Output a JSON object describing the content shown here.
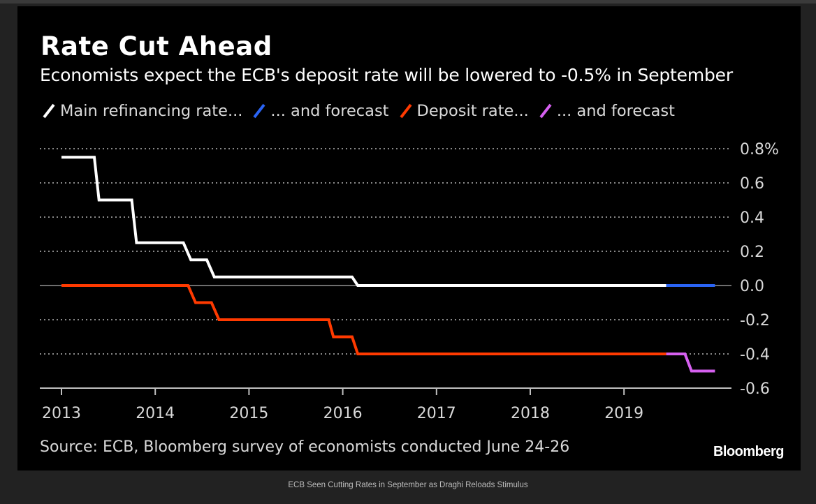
{
  "caption": "ECB Seen Cutting Rates in September as Draghi Reloads Stimulus",
  "brand": "Bloomberg",
  "chart_data": {
    "type": "line",
    "title": "Rate Cut Ahead",
    "subtitle": "Economists expect the ECB's deposit rate will be lowered to -0.5% in September",
    "source": "Source: ECB, Bloomberg survey of economists conducted June 24-26",
    "xlabel": "",
    "ylabel": "",
    "xlim": [
      2012.8,
      2020.2
    ],
    "ylim": [
      -0.6,
      0.8
    ],
    "x_ticks": [
      2013,
      2014,
      2015,
      2016,
      2017,
      2018,
      2019
    ],
    "x_tick_labels": [
      "2013",
      "2014",
      "2015",
      "2016",
      "2017",
      "2018",
      "2019"
    ],
    "y_ticks": [
      0.8,
      0.6,
      0.4,
      0.2,
      0.0,
      -0.2,
      -0.4,
      -0.6
    ],
    "y_tick_labels": [
      "0.8%",
      "0.6",
      "0.4",
      "0.2",
      "0.0",
      "-0.2",
      "-0.4",
      "-0.6"
    ],
    "grid": "horizontal-dotted",
    "legend_position": "top-left",
    "series": [
      {
        "name": "Main refinancing rate...",
        "color": "#ffffff",
        "step": true,
        "points": [
          [
            2013.0,
            0.75
          ],
          [
            2013.35,
            0.75
          ],
          [
            2013.4,
            0.5
          ],
          [
            2013.75,
            0.5
          ],
          [
            2013.8,
            0.25
          ],
          [
            2014.3,
            0.25
          ],
          [
            2014.38,
            0.15
          ],
          [
            2014.55,
            0.15
          ],
          [
            2014.63,
            0.05
          ],
          [
            2016.1,
            0.05
          ],
          [
            2016.16,
            0.0
          ],
          [
            2019.45,
            0.0
          ]
        ]
      },
      {
        "name": "... and forecast",
        "color": "#2a64f5",
        "step": true,
        "points": [
          [
            2019.45,
            0.0
          ],
          [
            2019.97,
            0.0
          ]
        ]
      },
      {
        "name": "Deposit rate...",
        "color": "#ff3a00",
        "step": true,
        "points": [
          [
            2013.0,
            0.0
          ],
          [
            2014.35,
            0.0
          ],
          [
            2014.43,
            -0.1
          ],
          [
            2014.6,
            -0.1
          ],
          [
            2014.68,
            -0.2
          ],
          [
            2015.85,
            -0.2
          ],
          [
            2015.9,
            -0.3
          ],
          [
            2016.1,
            -0.3
          ],
          [
            2016.16,
            -0.4
          ],
          [
            2019.45,
            -0.4
          ]
        ]
      },
      {
        "name": "... and forecast",
        "color": "#d660f0",
        "step": true,
        "points": [
          [
            2019.45,
            -0.4
          ],
          [
            2019.65,
            -0.4
          ],
          [
            2019.72,
            -0.5
          ],
          [
            2019.97,
            -0.5
          ]
        ]
      }
    ]
  }
}
